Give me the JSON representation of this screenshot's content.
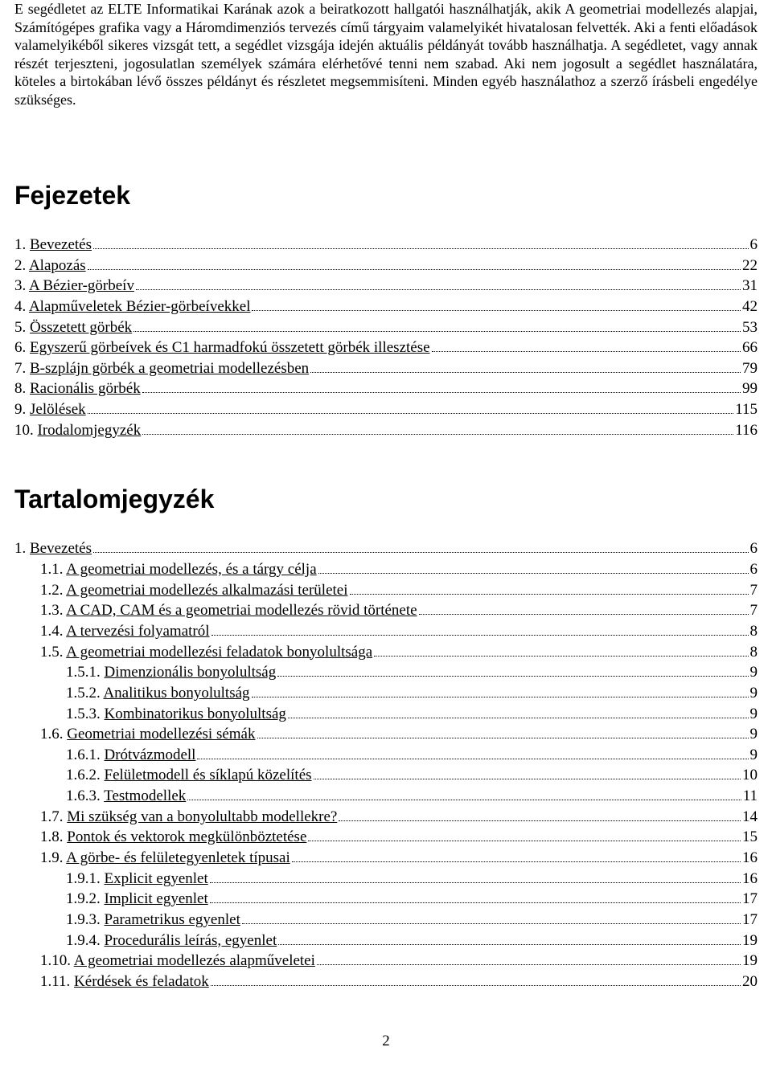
{
  "intro_text": "E segédletet az ELTE Informatikai Karának azok a beiratkozott hallgatói használhatják, akik A geometriai modellezés alapjai, Számítógépes grafika vagy a Háromdimenziós tervezés című tárgyaim valamelyikét hivatalosan felvették. Aki a fenti előadások valamelyikéből sikeres vizsgát tett, a segédlet vizsgája idején aktuális példányát tovább használhatja. A segédletet, vagy annak részét terjeszteni, jogosulatlan személyek számára elérhetővé tenni nem szabad. Aki nem jogosult a segédlet használatára, köteles a birtokában lévő összes példányt és részletet megsemmisíteni. Minden egyéb használathoz a szerző írásbeli engedélye szükséges.",
  "chapters_heading": "Fejezetek",
  "chapters": [
    {
      "num": "1.",
      "title": "Bevezetés",
      "page": "6"
    },
    {
      "num": "2.",
      "title": "Alapozás",
      "page": "22"
    },
    {
      "num": "3.",
      "title": "A Bézier-görbeív",
      "page": "31"
    },
    {
      "num": "4.",
      "title": "Alapműveletek Bézier-görbeívekkel",
      "page": "42"
    },
    {
      "num": "5.",
      "title": "Összetett görbék",
      "page": "53"
    },
    {
      "num": "6.",
      "title": "Egyszerű görbeívek és C1 harmadfokú összetett görbék illesztése",
      "page": "66"
    },
    {
      "num": "7.",
      "title": "B-szplájn görbék a geometriai modellezésben",
      "page": "79"
    },
    {
      "num": "8.",
      "title": "Racionális görbék",
      "page": "99"
    },
    {
      "num": "9.",
      "title": "Jelölések",
      "page": "115"
    },
    {
      "num": "10.",
      "title": "Irodalomjegyzék",
      "page": "116"
    }
  ],
  "toc_heading": "Tartalomjegyzék",
  "toc": [
    {
      "indent": 0,
      "num": "1.",
      "title": "Bevezetés",
      "page": "6"
    },
    {
      "indent": 1,
      "num": "1.1.",
      "title": "A geometriai modellezés, és a tárgy célja",
      "page": "6"
    },
    {
      "indent": 1,
      "num": "1.2.",
      "title": "A geometriai modellezés alkalmazási területei",
      "page": "7"
    },
    {
      "indent": 1,
      "num": "1.3.",
      "title": "A CAD, CAM és a geometriai modellezés rövid története",
      "page": "7"
    },
    {
      "indent": 1,
      "num": "1.4.",
      "title": "A tervezési folyamatról",
      "page": "8"
    },
    {
      "indent": 1,
      "num": "1.5.",
      "title": "A geometriai modellezési feladatok bonyolultsága",
      "page": "8"
    },
    {
      "indent": 2,
      "num": "1.5.1.",
      "title": "Dimenzionális bonyolultság",
      "page": "9"
    },
    {
      "indent": 2,
      "num": "1.5.2.",
      "title": "Analitikus bonyolultság",
      "page": "9"
    },
    {
      "indent": 2,
      "num": "1.5.3.",
      "title": "Kombinatorikus bonyolultság",
      "page": "9"
    },
    {
      "indent": 1,
      "num": "1.6.",
      "title": "Geometriai modellezési sémák",
      "page": "9"
    },
    {
      "indent": 2,
      "num": "1.6.1.",
      "title": "Drótvázmodell",
      "page": "9"
    },
    {
      "indent": 2,
      "num": "1.6.2.",
      "title": "Felületmodell és síklapú közelítés",
      "page": "10"
    },
    {
      "indent": 2,
      "num": "1.6.3.",
      "title": "Testmodellek",
      "page": "11"
    },
    {
      "indent": 1,
      "num": "1.7.",
      "title": "Mi szükség van a bonyolultabb modellekre?",
      "page": "14"
    },
    {
      "indent": 1,
      "num": "1.8.",
      "title": "Pontok és vektorok megkülönböztetése",
      "page": "15"
    },
    {
      "indent": 1,
      "num": "1.9.",
      "title": "A görbe- és felületegyenletek típusai",
      "page": "16"
    },
    {
      "indent": 2,
      "num": "1.9.1.",
      "title": "Explicit egyenlet",
      "page": "16"
    },
    {
      "indent": 2,
      "num": "1.9.2.",
      "title": "Implicit egyenlet",
      "page": "17"
    },
    {
      "indent": 2,
      "num": "1.9.3.",
      "title": "Parametrikus egyenlet",
      "page": "17"
    },
    {
      "indent": 2,
      "num": "1.9.4.",
      "title": "Procedurális leírás, egyenlet",
      "page": "19"
    },
    {
      "indent": 1,
      "num": "1.10.",
      "title": "A geometriai modellezés alapműveletei",
      "page": "19"
    },
    {
      "indent": 1,
      "num": "1.11.",
      "title": "Kérdések és feladatok",
      "page": "20"
    }
  ],
  "page_number": "2"
}
